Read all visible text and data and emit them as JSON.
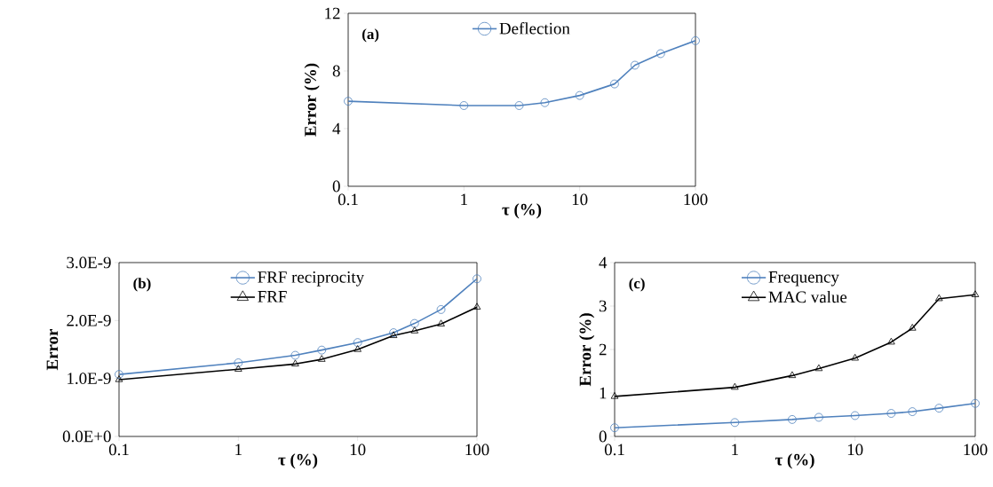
{
  "chart_data": [
    {
      "type": "line",
      "x": [
        0.1,
        1,
        3,
        5,
        10,
        20,
        30,
        50,
        100
      ],
      "log": "x",
      "xlabel": "τ (%)",
      "ylabel": "Error (%)",
      "annotations": [
        "(a)"
      ],
      "xlim": [
        0.1,
        100
      ],
      "xticks": [
        0.1,
        1,
        10,
        100
      ],
      "ylim": [
        0,
        12
      ],
      "yticks": [
        0,
        4,
        8,
        12
      ],
      "legend": "top",
      "grid": false,
      "series": [
        {
          "name": "Deflection",
          "color": "#4f81bd",
          "marker": "circle",
          "values": [
            5.9,
            5.6,
            5.6,
            5.8,
            6.3,
            7.1,
            8.4,
            9.2,
            10.1
          ]
        }
      ]
    },
    {
      "type": "line",
      "x": [
        0.1,
        1,
        3,
        5,
        10,
        20,
        30,
        50,
        100
      ],
      "log": "x",
      "xlabel": "τ (%)",
      "ylabel": "Error",
      "annotations": [
        "(b)"
      ],
      "xlim": [
        0.1,
        100
      ],
      "xticks": [
        0.1,
        1,
        10,
        100
      ],
      "ylim": [
        0,
        3e-09
      ],
      "yticks": [
        {
          "value": 0,
          "label": "0.0E+0"
        },
        {
          "value": 1e-09,
          "label": "1.0E-9"
        },
        {
          "value": 2e-09,
          "label": "2.0E-9"
        },
        {
          "value": 3e-09,
          "label": "3.0E-9"
        }
      ],
      "legend": "top",
      "grid": false,
      "series": [
        {
          "name": "FRF reciprocity",
          "color": "#4f81bd",
          "marker": "circle",
          "values": [
            1.07e-09,
            1.27e-09,
            1.4e-09,
            1.49e-09,
            1.62e-09,
            1.79e-09,
            1.95e-09,
            2.19e-09,
            2.72e-09
          ]
        },
        {
          "name": "FRF",
          "color": "#000000",
          "marker": "triangle",
          "values": [
            9.8e-10,
            1.16e-09,
            1.25e-09,
            1.33e-09,
            1.5e-09,
            1.74e-09,
            1.82e-09,
            1.94e-09,
            2.23e-09
          ]
        }
      ]
    },
    {
      "type": "line",
      "x": [
        0.1,
        1,
        3,
        5,
        10,
        20,
        30,
        50,
        100
      ],
      "log": "x",
      "xlabel": "τ (%)",
      "ylabel": "Error (%)",
      "annotations": [
        "(c)"
      ],
      "xlim": [
        0.1,
        100
      ],
      "xticks": [
        0.1,
        1,
        10,
        100
      ],
      "ylim": [
        0,
        4
      ],
      "yticks": [
        0,
        1,
        2,
        3,
        4
      ],
      "legend": "top",
      "grid": false,
      "series": [
        {
          "name": "Frequency",
          "color": "#4f81bd",
          "marker": "circle",
          "values": [
            0.2,
            0.32,
            0.39,
            0.44,
            0.48,
            0.53,
            0.57,
            0.65,
            0.76
          ]
        },
        {
          "name": "MAC value",
          "color": "#000000",
          "marker": "triangle",
          "values": [
            0.92,
            1.13,
            1.4,
            1.56,
            1.8,
            2.17,
            2.49,
            3.17,
            3.26
          ]
        }
      ]
    }
  ]
}
